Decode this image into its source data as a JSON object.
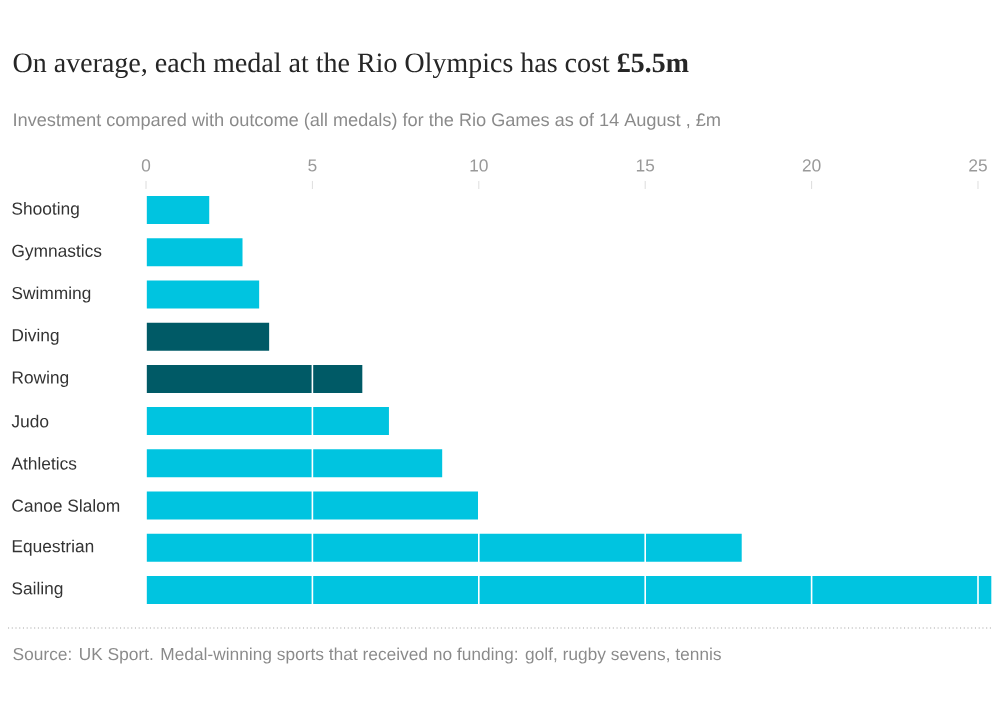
{
  "chart_data": {
    "type": "bar",
    "orientation": "horizontal",
    "title": "On average, each medal at the Rio Olympics has cost **£5.5m**",
    "subtitle": "Investment compared with outcome (all medals) for the Rio Games as of 14 August , £m",
    "annotations": [
      "Source: UK Sport. Medal-winning sports that received no funding: golf, rugby sevens, tennis"
    ],
    "categories": [
      "Shooting",
      "Gymnastics",
      "Swimming",
      "Diving",
      "Rowing",
      "Judo",
      "Athletics",
      "Canoe Slalom",
      "Equestrian",
      "Sailing"
    ],
    "values": [
      1.9,
      2.9,
      3.4,
      3.7,
      6.5,
      7.3,
      8.9,
      10.0,
      17.9,
      25.4
    ],
    "colors": [
      "#00c4e0",
      "#00c4e0",
      "#00c4e0",
      "#005a66",
      "#005a66",
      "#00c4e0",
      "#00c4e0",
      "#00c4e0",
      "#00c4e0",
      "#00c4e0"
    ],
    "xlim": [
      0,
      25.5
    ],
    "xticks": [
      0,
      5,
      10,
      15,
      20,
      25
    ],
    "grid": "x"
  }
}
